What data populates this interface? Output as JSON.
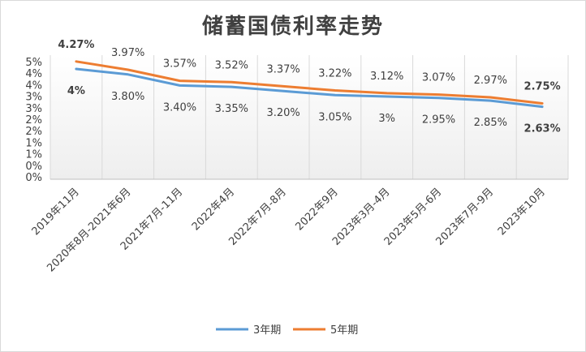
{
  "chart_data": {
    "type": "line",
    "title": "储蓄国债利率走势",
    "categories": [
      "2019年11月",
      "2020年8月-2021年6月",
      "2021年7月-11月",
      "2022年4月",
      "2022年7月-8月",
      "2022年9月",
      "2023年3月-4月",
      "2023年5月-6月",
      "2023年7月-9月",
      "2023年10月"
    ],
    "y_tick_labels": [
      "5%",
      "4%",
      "4%",
      "3%",
      "3%",
      "2%",
      "2%",
      "1%",
      "1%",
      "0%",
      "0%"
    ],
    "ylim": [
      0,
      4.5
    ],
    "grid": "vertical",
    "legend_position": "bottom",
    "series": [
      {
        "name": "3年期",
        "color": "#5b9bd5",
        "values": [
          4.0,
          3.8,
          3.4,
          3.35,
          3.2,
          3.05,
          3.0,
          2.95,
          2.85,
          2.63
        ],
        "labels": [
          "4%",
          "3.80%",
          "3.40%",
          "3.35%",
          "3.20%",
          "3.05%",
          "3%",
          "2.95%",
          "2.85%",
          "2.63%"
        ],
        "label_colors": [
          "#5b9bd5",
          "#404040",
          "#404040",
          "#404040",
          "#404040",
          "#404040",
          "#404040",
          "#404040",
          "#404040",
          "#c00000"
        ]
      },
      {
        "name": "5年期",
        "color": "#ed7d31",
        "values": [
          4.27,
          3.97,
          3.57,
          3.52,
          3.37,
          3.22,
          3.12,
          3.07,
          2.97,
          2.75
        ],
        "labels": [
          "4.27%",
          "3.97%",
          "3.57%",
          "3.52%",
          "3.37%",
          "3.22%",
          "3.12%",
          "3.07%",
          "2.97%",
          "2.75%"
        ],
        "label_colors": [
          "#5b9bd5",
          "#404040",
          "#404040",
          "#404040",
          "#404040",
          "#404040",
          "#404040",
          "#404040",
          "#404040",
          "#c00000"
        ]
      }
    ]
  }
}
